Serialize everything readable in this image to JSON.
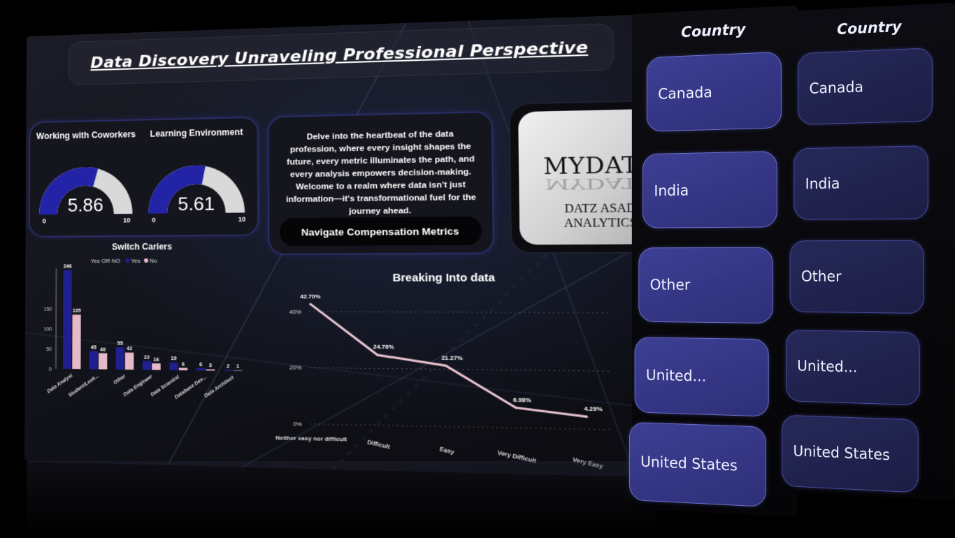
{
  "header": {
    "title": "Data Discovery Unraveling Professional Perspective"
  },
  "gauges": [
    {
      "title": "Working with Coworkers",
      "value": "5.86",
      "fraction": 0.586,
      "min": "0",
      "max": "10"
    },
    {
      "title": "Learning Environment",
      "value": "5.61",
      "fraction": 0.561,
      "min": "0",
      "max": "10"
    }
  ],
  "intro_text": "Delve into the heartbeat of the data profession, where every insight shapes the future, every metric illuminates the path, and every analysis empowers decision-making. Welcome to a realm where data isn't just information—it's transformational fuel for the journey ahead.",
  "nav_button": {
    "label": "Navigate Compensation Metrics"
  },
  "logo": {
    "main": "MYDATZ",
    "sub": "DATZ ASAD ANALYTICS"
  },
  "country_slicer": {
    "title": "Country",
    "items": [
      "Canada",
      "India",
      "Other",
      "United...",
      "United States"
    ]
  },
  "colors": {
    "yes": "#1f1f8f",
    "no": "#e6b9c8",
    "accent": "#2b2fb5",
    "slicer": "#3d3f94"
  },
  "chart_data": [
    {
      "type": "bar",
      "title": "Switch Cariers",
      "legend_title": "Yes OR NO",
      "legend_placement": "top",
      "categories": [
        "Data Analyst",
        "Student/Look...",
        "Other",
        "Data Engineer",
        "Data Scientist",
        "Database Dev...",
        "Data Architect"
      ],
      "series": [
        {
          "name": "Yes",
          "values": [
            246,
            45,
            55,
            22,
            19,
            6,
            2
          ]
        },
        {
          "name": "No",
          "values": [
            135,
            40,
            42,
            16,
            6,
            3,
            1
          ]
        }
      ],
      "ytick_labels": [
        "150",
        "100",
        "50",
        "0"
      ],
      "ylim": [
        0,
        250
      ],
      "grid": false
    },
    {
      "type": "line",
      "title": "Breaking Into data",
      "x": [
        "Neither easy nor difficult",
        "Difficult",
        "Easy",
        "Very Difficult",
        "Very Easy"
      ],
      "y": [
        42.7,
        24.76,
        21.27,
        6.98,
        4.29
      ],
      "data_labels": [
        "42.70%",
        "24.76%",
        "21.27%",
        "6.98%",
        "4.29%"
      ],
      "ytick_labels": [
        "40%",
        "20%",
        "0%"
      ],
      "ylim": [
        0,
        45
      ],
      "grid": true
    }
  ]
}
